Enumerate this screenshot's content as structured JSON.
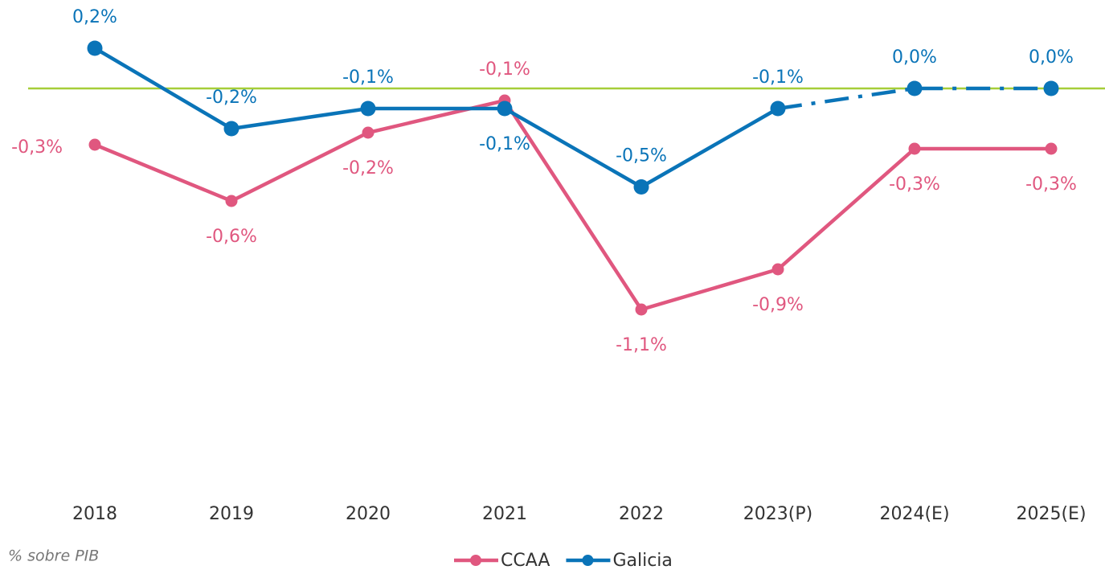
{
  "chart_data": {
    "type": "line",
    "categories": [
      "2018",
      "2019",
      "2020",
      "2021",
      "2022",
      "2023(P)",
      "2024(E)",
      "2025(E)"
    ],
    "series": [
      {
        "name": "CCAA",
        "color": "#e0577f",
        "values": [
          -0.28,
          -0.56,
          -0.22,
          -0.06,
          -1.1,
          -0.9,
          -0.3,
          -0.3
        ],
        "value_labels": [
          "-0,3%",
          "-0,6%",
          "-0,2%",
          "-0,1%",
          "-1,1%",
          "-0,9%",
          "-0,3%",
          "-0,3%"
        ]
      },
      {
        "name": "Galicia",
        "color": "#0a74b8",
        "values": [
          0.2,
          -0.2,
          -0.1,
          -0.1,
          -0.49,
          -0.1,
          0.0,
          0.0
        ],
        "value_labels": [
          "0,2%",
          "-0,2%",
          "-0,1%",
          "-0,1%",
          "-0,5%",
          "-0,1%",
          "0,0%",
          "0,0%"
        ],
        "dashed_from": "2023(P)"
      }
    ],
    "ylim": [
      -2,
      0.4
    ],
    "zero_line_color": "#a6ce39",
    "legend": "bottom",
    "note": "% sobre PIB"
  }
}
